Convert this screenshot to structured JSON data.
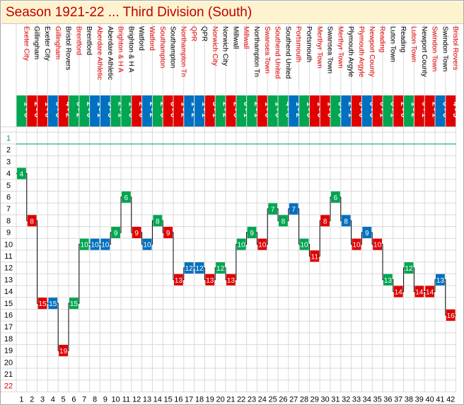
{
  "title": "Season 1921-22 ... Third Division (South)",
  "colors": {
    "win": "#00a651",
    "draw": "#0070c0",
    "loss": "#e00000",
    "home_text": "#000000",
    "away_text": "#e00000",
    "grid": "#d9d9d9",
    "top_line": "#00a651",
    "top_label": "#00a651",
    "bottom_label": "#e00000",
    "normal_label": "#000000"
  },
  "chart_data": {
    "type": "line",
    "title": "Season 1921-22 ... Third Division (South)",
    "xlabel": "",
    "ylabel": "",
    "x": [
      1,
      2,
      3,
      4,
      5,
      6,
      7,
      8,
      9,
      10,
      11,
      12,
      13,
      14,
      15,
      16,
      17,
      18,
      19,
      20,
      21,
      22,
      23,
      24,
      25,
      26,
      27,
      28,
      29,
      30,
      31,
      32,
      33,
      34,
      35,
      36,
      37,
      38,
      39,
      40,
      41,
      42
    ],
    "ylim": [
      1,
      22
    ],
    "y_reversed": true,
    "y_ticks": [
      1,
      2,
      3,
      4,
      5,
      6,
      7,
      8,
      9,
      10,
      11,
      12,
      13,
      14,
      15,
      16,
      17,
      18,
      19,
      20,
      21,
      22
    ],
    "opponents": [
      "Exeter City",
      "Gillingham",
      "Exeter City",
      "Gillingham",
      "Bristol Rovers",
      "Brentford",
      "Brentford",
      "Aberdare Athletic",
      "Aberdare Athletic",
      "Brighton & H A",
      "Brighton & H A",
      "Watford",
      "Watford",
      "Southampton",
      "Southampton",
      "Northampton Tn",
      "QPR",
      "QPR",
      "Norwich City",
      "Norwich City",
      "Millwall",
      "Millwall",
      "Northampton Tn",
      "Swansea Town",
      "Southend United",
      "Southend United",
      "Portsmouth",
      "Portsmouth",
      "Merthyr Town",
      "Swansea Town",
      "Merthyr Town",
      "Plymouth Argyle",
      "Plymouth Argyle",
      "Newport County",
      "Reading",
      "Luton Town",
      "Reading",
      "Luton Town",
      "Newport County",
      "Swindon Town",
      "Swindon Town",
      "Bristol Rovers"
    ],
    "venue": [
      "A",
      "H",
      "H",
      "A",
      "H",
      "A",
      "H",
      "A",
      "H",
      "A",
      "H",
      "H",
      "A",
      "A",
      "H",
      "A",
      "A",
      "H",
      "A",
      "H",
      "H",
      "A",
      "H",
      "A",
      "A",
      "H",
      "A",
      "H",
      "A",
      "H",
      "A",
      "H",
      "A",
      "A",
      "A",
      "H",
      "H",
      "A",
      "H",
      "A",
      "H",
      "A"
    ],
    "scores": [
      "1 - 0",
      "2 - 0",
      "1 - 0",
      "0 - 0",
      "4 - 2",
      "0 - 2",
      "2 - 0",
      "1 - 1",
      "3 - 3",
      "2 - 1",
      "1 - 0",
      "2 - 0",
      "2 - 2",
      "2 - 0",
      "6 - 0",
      "1 - 2",
      "1 - 2",
      "1 - 1",
      "3 - 1",
      "2 - 2",
      "2 - 0",
      "0 - 1",
      "2 - 1",
      "1 - 0",
      "1 - 0",
      "4 - 0",
      "1 - 2",
      "1 - 0",
      "1 - 0",
      "1 - 0",
      "0 - 0",
      "2 - 1",
      "3 - 0",
      "0 - 0",
      "0 - 1",
      "0 - 1",
      "2 - 0",
      "1 - 2",
      "0 - 1",
      "2 - 1",
      "0 - 0",
      "4 - 5"
    ],
    "results": [
      "W",
      "L",
      "L",
      "D",
      "L",
      "W",
      "W",
      "D",
      "D",
      "W",
      "W",
      "L",
      "D",
      "W",
      "L",
      "L",
      "D",
      "D",
      "L",
      "W",
      "L",
      "W",
      "W",
      "L",
      "W",
      "W",
      "D",
      "W",
      "L",
      "L",
      "W",
      "D",
      "L",
      "D",
      "L",
      "W",
      "L",
      "W",
      "L",
      "L",
      "D",
      "L"
    ],
    "positions": [
      4,
      8,
      15,
      15,
      19,
      15,
      10,
      10,
      10,
      9,
      6,
      9,
      10,
      8,
      9,
      13,
      12,
      12,
      13,
      12,
      13,
      10,
      9,
      10,
      7,
      8,
      7,
      10,
      11,
      8,
      6,
      8,
      10,
      9,
      10,
      13,
      14,
      12,
      14,
      14,
      13,
      16
    ]
  }
}
